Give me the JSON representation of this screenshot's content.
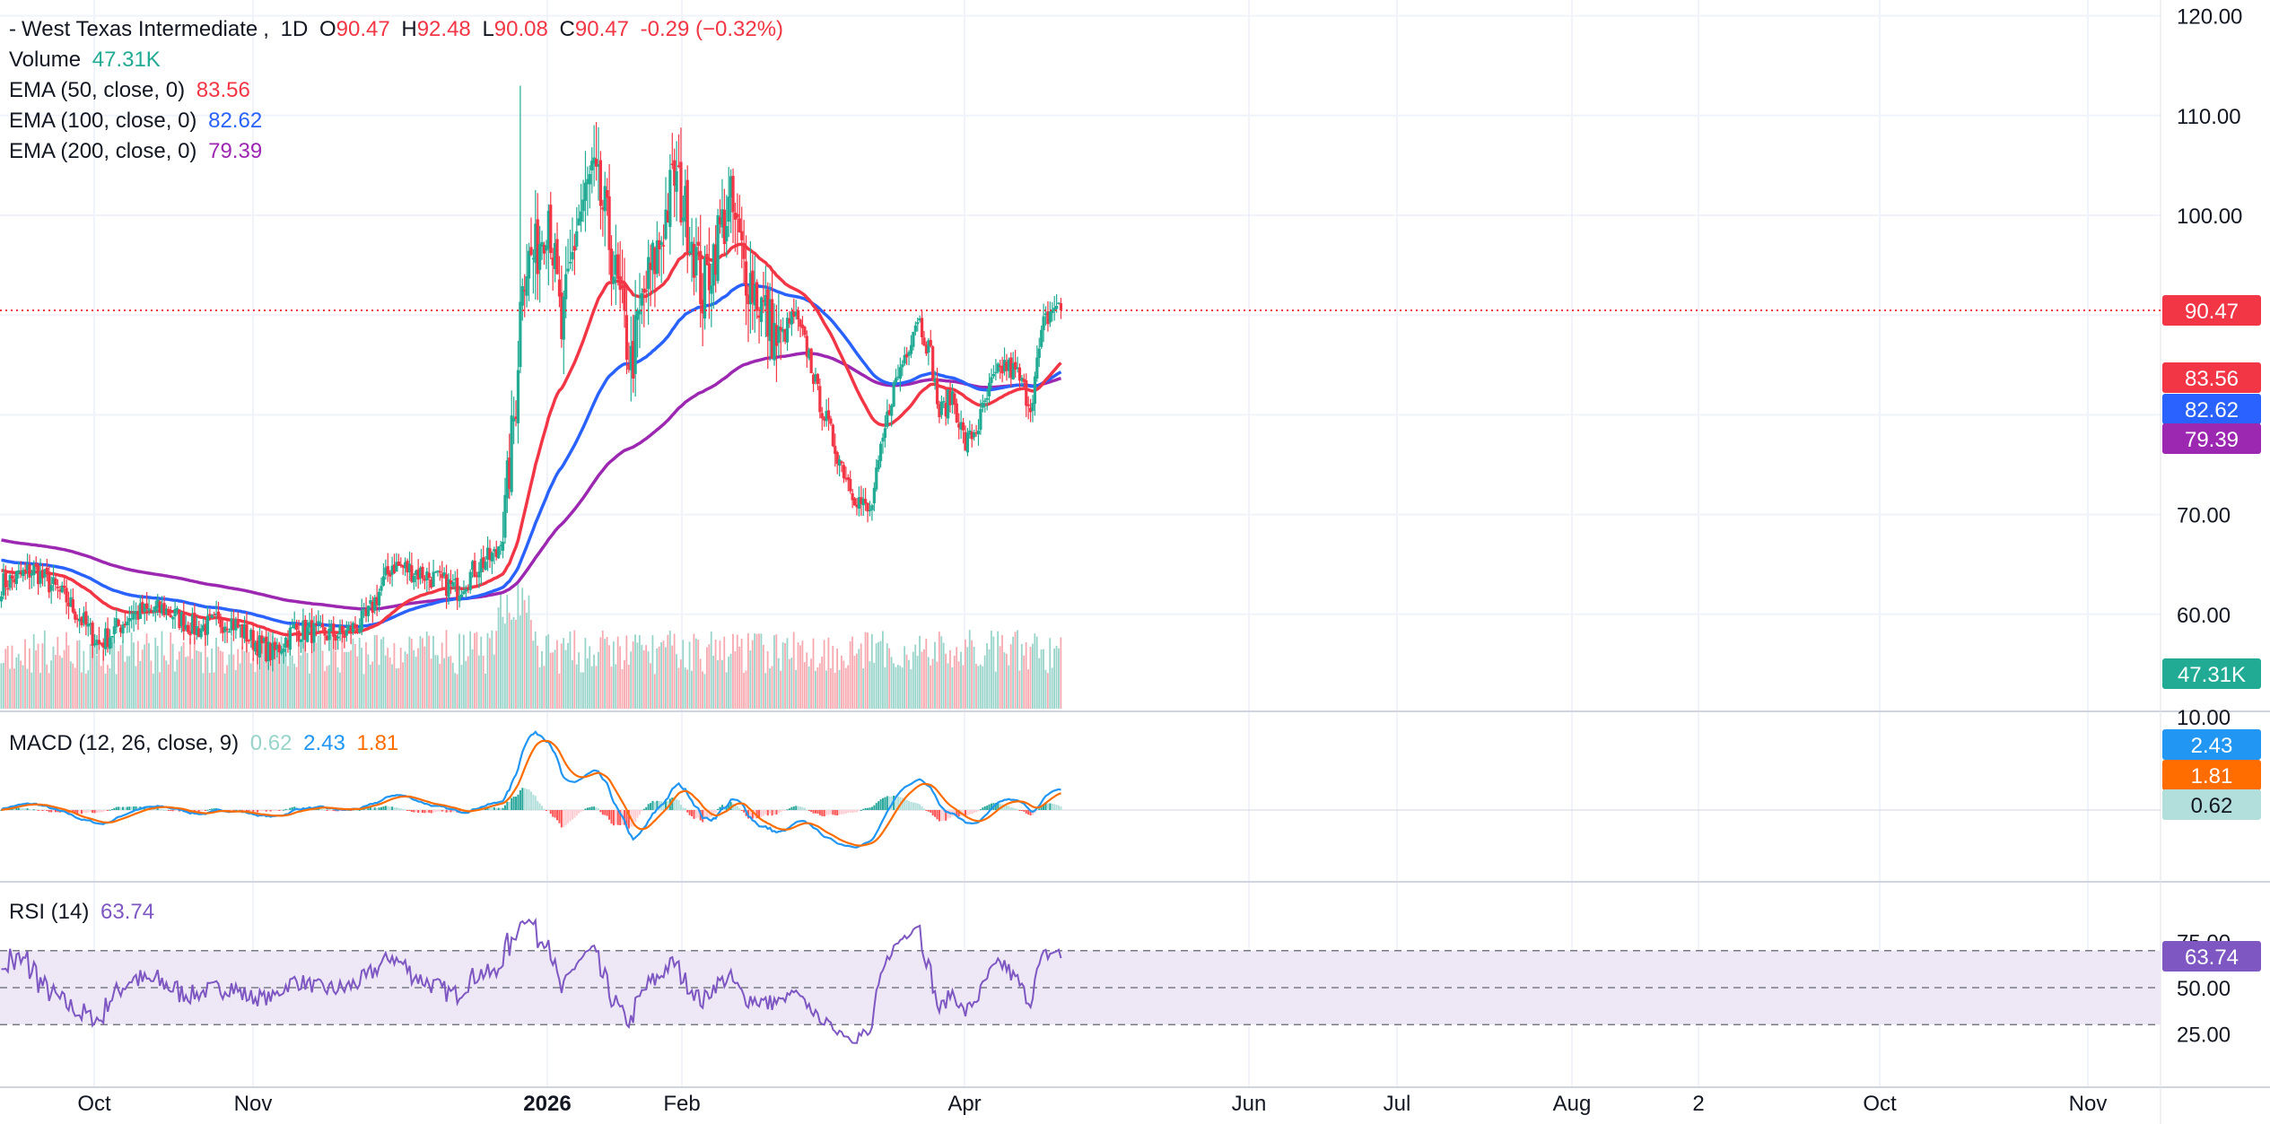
{
  "header": {
    "symbol": "West Texas Intermediate",
    "interval": "1D",
    "o_label": "O",
    "o_value": "90.47",
    "h_label": "H",
    "h_value": "92.48",
    "l_label": "L",
    "l_value": "90.08",
    "c_label": "C",
    "c_value": "90.47",
    "change": "-0.29 (−0.32%)"
  },
  "indicators": {
    "volume": {
      "label": "Volume",
      "value": "47.31K"
    },
    "ema50": {
      "label": "EMA (50, close, 0)",
      "value": "83.56",
      "color": "#f23645"
    },
    "ema100": {
      "label": "EMA (100, close, 0)",
      "value": "82.62",
      "color": "#2962ff"
    },
    "ema200": {
      "label": "EMA (200, close, 0)",
      "value": "79.39",
      "color": "#9c27b0"
    },
    "macd": {
      "label": "MACD (12, 26, close, 9)",
      "hist": "0.62",
      "macd": "2.43",
      "signal": "1.81"
    },
    "rsi": {
      "label": "RSI (14)",
      "value": "63.74",
      "color": "#7e57c2"
    }
  },
  "colors": {
    "up": "#22ab94",
    "down": "#f23645",
    "up_vol": "#98d4ca",
    "down_vol": "#f7a9b0",
    "grid": "#f0f3fa",
    "macd_line": "#2196f3",
    "signal_line": "#ff6d00",
    "rsi_band": "#ede7f6"
  },
  "chart_data": {
    "type": "candlestick",
    "price_axis": {
      "ticks": [
        "120.00",
        "110.00",
        "100.00",
        "70.00",
        "60.00"
      ],
      "ylim": [
        50,
        122
      ]
    },
    "volume_axis": {
      "ticks": [
        "10.00"
      ]
    },
    "rsi_axis": {
      "ticks": [
        "75.00",
        "50.00",
        "25.00"
      ],
      "bands": [
        70,
        50,
        30
      ]
    },
    "x_ticks": [
      "Oct",
      "Nov",
      "2026",
      "Feb",
      "Apr",
      "Jun",
      "Jul",
      "Aug",
      "2",
      "Oct",
      "Nov"
    ],
    "last_price": "90.47",
    "badges": {
      "last": "90.47",
      "ema50": "83.56",
      "ema100": "82.62",
      "ema200": "79.39",
      "volume": "47.31K",
      "macd": "2.43",
      "signal": "1.81",
      "hist": "0.62",
      "rsi": "63.74"
    },
    "close_anchors": [
      [
        0,
        63.0
      ],
      [
        15,
        64.5
      ],
      [
        30,
        61.5
      ],
      [
        45,
        57.0
      ],
      [
        60,
        60.0
      ],
      [
        75,
        60.5
      ],
      [
        90,
        58.5
      ],
      [
        105,
        59.5
      ],
      [
        115,
        57.5
      ],
      [
        125,
        56.0
      ],
      [
        135,
        58.5
      ],
      [
        150,
        58.0
      ],
      [
        158,
        58.0
      ],
      [
        168,
        59.5
      ],
      [
        180,
        65.0
      ],
      [
        195,
        64.0
      ],
      [
        210,
        62.5
      ],
      [
        220,
        65.0
      ],
      [
        228,
        66.0
      ],
      [
        232,
        70.0
      ],
      [
        237,
        82.0
      ],
      [
        240,
        95.0
      ],
      [
        246,
        96.0
      ],
      [
        252,
        101.0
      ],
      [
        258,
        88.0
      ],
      [
        265,
        99.0
      ],
      [
        272,
        104.0
      ],
      [
        278,
        100.0
      ],
      [
        285,
        91.0
      ],
      [
        290,
        85.0
      ],
      [
        296,
        92.0
      ],
      [
        303,
        97.0
      ],
      [
        310,
        104.0
      ],
      [
        318,
        98.0
      ],
      [
        323,
        92.0
      ],
      [
        330,
        98.0
      ],
      [
        336,
        101.0
      ],
      [
        342,
        95.0
      ],
      [
        350,
        91.0
      ],
      [
        358,
        87.0
      ],
      [
        365,
        90.0
      ],
      [
        372,
        86.0
      ],
      [
        376,
        82.0
      ],
      [
        382,
        78.0
      ],
      [
        387,
        75.0
      ],
      [
        393,
        72.0
      ],
      [
        400,
        70.0
      ],
      [
        405,
        76.0
      ],
      [
        410,
        82.0
      ],
      [
        416,
        86.0
      ],
      [
        422,
        90.0
      ],
      [
        428,
        86.0
      ],
      [
        432,
        80.0
      ],
      [
        438,
        82.0
      ],
      [
        444,
        77.0
      ],
      [
        450,
        79.0
      ],
      [
        456,
        83.0
      ],
      [
        462,
        85.0
      ],
      [
        468,
        84.0
      ],
      [
        474,
        81.0
      ],
      [
        480,
        89.0
      ],
      [
        485,
        91.0
      ],
      [
        488,
        90.47
      ]
    ]
  }
}
